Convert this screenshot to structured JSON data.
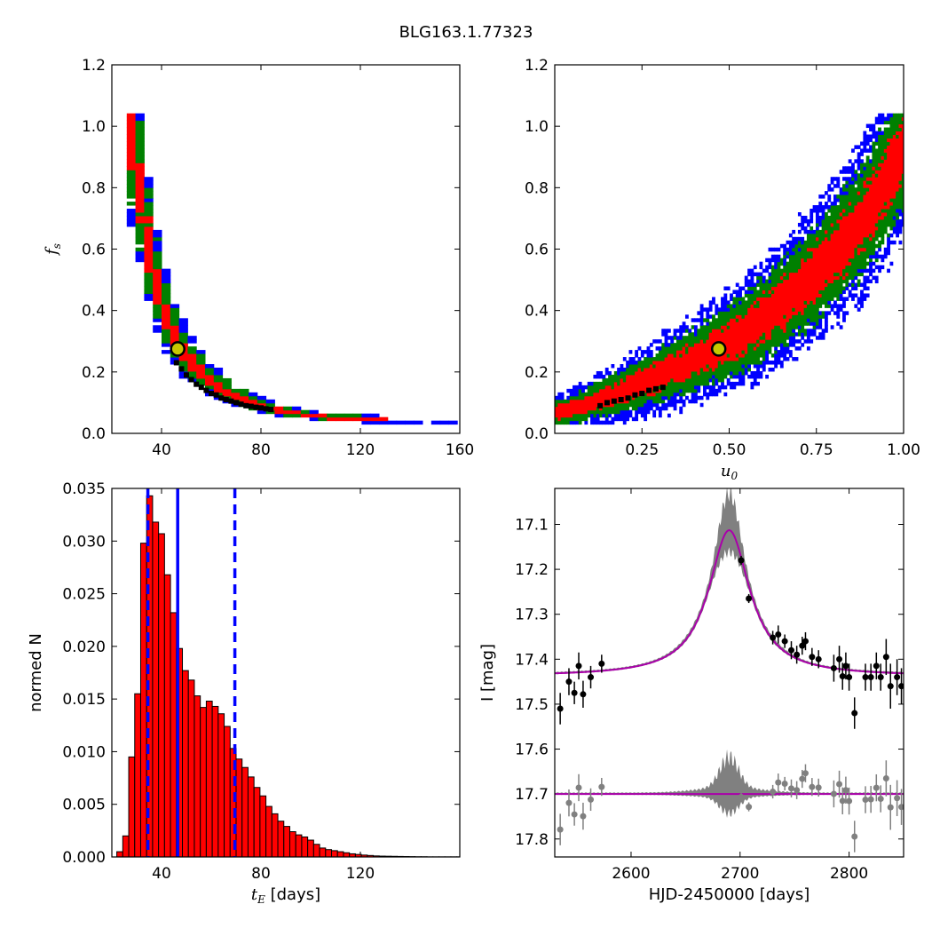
{
  "figure": {
    "title": "BLG163.1.77323"
  },
  "colors": {
    "sigma1": "#ff0000",
    "sigma2": "#008000",
    "sigma3": "#0000ff",
    "best": "#000000",
    "marker_fill": "#c8c800",
    "hist_fill": "#ff0000",
    "model": "#aa00aa",
    "band": "#808080",
    "data_main": "#000000",
    "data_resid": "#808080",
    "median_line": "#0000ff"
  },
  "chart_data": [
    {
      "id": "tE-vs-fs",
      "type": "heatmap",
      "xlabel": "",
      "ylabel": "f_s",
      "xlim": [
        20,
        160
      ],
      "ylim": [
        0.0,
        1.2
      ],
      "xticks": [
        "40",
        "80",
        "120",
        "160"
      ],
      "yticks": [
        "0.0",
        "0.2",
        "0.4",
        "0.6",
        "0.8",
        "1.0",
        "1.2"
      ],
      "marker": {
        "x": 46.5,
        "y": 0.275
      },
      "ridge": [
        [
          26,
          1.03
        ],
        [
          28,
          0.96
        ],
        [
          30,
          0.86
        ],
        [
          32,
          0.74
        ],
        [
          34,
          0.63
        ],
        [
          36,
          0.55
        ],
        [
          38,
          0.48
        ],
        [
          40,
          0.42
        ],
        [
          42,
          0.37
        ],
        [
          44,
          0.33
        ],
        [
          46,
          0.295
        ],
        [
          48,
          0.265
        ],
        [
          50,
          0.24
        ],
        [
          54,
          0.205
        ],
        [
          58,
          0.175
        ],
        [
          62,
          0.15
        ],
        [
          66,
          0.13
        ],
        [
          70,
          0.115
        ],
        [
          75,
          0.098
        ],
        [
          80,
          0.084
        ],
        [
          86,
          0.071
        ],
        [
          92,
          0.061
        ],
        [
          100,
          0.052
        ],
        [
          110,
          0.045
        ],
        [
          120,
          0.041
        ],
        [
          130,
          0.038
        ],
        [
          145,
          0.036
        ],
        [
          158,
          0.035
        ]
      ],
      "best_fit_points": [
        [
          46,
          0.23
        ],
        [
          48,
          0.21
        ],
        [
          50,
          0.19
        ],
        [
          52,
          0.175
        ],
        [
          54,
          0.16
        ],
        [
          56,
          0.15
        ],
        [
          58,
          0.14
        ],
        [
          60,
          0.13
        ],
        [
          62,
          0.125
        ],
        [
          64,
          0.115
        ],
        [
          66,
          0.11
        ],
        [
          68,
          0.105
        ],
        [
          70,
          0.1
        ],
        [
          72,
          0.095
        ],
        [
          74,
          0.09
        ],
        [
          76,
          0.088
        ],
        [
          78,
          0.085
        ],
        [
          80,
          0.083
        ],
        [
          82,
          0.08
        ],
        [
          84,
          0.078
        ]
      ]
    },
    {
      "id": "u0-vs-fs",
      "type": "heatmap",
      "xlabel": "u_0",
      "ylabel": "",
      "xlim": [
        0.0,
        1.0
      ],
      "ylim": [
        0.0,
        1.2
      ],
      "xticks": [
        "0.25",
        "0.50",
        "0.75",
        "1.00"
      ],
      "yticks": [
        "0.0",
        "0.2",
        "0.4",
        "0.6",
        "0.8",
        "1.0",
        "1.2"
      ],
      "marker": {
        "x": 0.47,
        "y": 0.275
      },
      "ridge": [
        [
          0.0,
          0.06
        ],
        [
          0.05,
          0.075
        ],
        [
          0.1,
          0.095
        ],
        [
          0.15,
          0.115
        ],
        [
          0.2,
          0.135
        ],
        [
          0.25,
          0.16
        ],
        [
          0.3,
          0.185
        ],
        [
          0.35,
          0.21
        ],
        [
          0.4,
          0.235
        ],
        [
          0.45,
          0.265
        ],
        [
          0.5,
          0.295
        ],
        [
          0.55,
          0.33
        ],
        [
          0.6,
          0.37
        ],
        [
          0.65,
          0.415
        ],
        [
          0.7,
          0.465
        ],
        [
          0.75,
          0.52
        ],
        [
          0.8,
          0.58
        ],
        [
          0.85,
          0.64
        ],
        [
          0.9,
          0.72
        ],
        [
          0.95,
          0.82
        ],
        [
          1.0,
          0.92
        ]
      ],
      "best_fit_points": [
        [
          0.13,
          0.09
        ],
        [
          0.15,
          0.1
        ],
        [
          0.17,
          0.105
        ],
        [
          0.19,
          0.11
        ],
        [
          0.21,
          0.115
        ],
        [
          0.23,
          0.125
        ],
        [
          0.25,
          0.13
        ],
        [
          0.27,
          0.14
        ],
        [
          0.29,
          0.145
        ],
        [
          0.31,
          0.15
        ]
      ]
    },
    {
      "id": "tE-histogram",
      "type": "bar",
      "xlabel": "t_E [days]",
      "ylabel": "normed N",
      "xlim": [
        20,
        160
      ],
      "ylim": [
        0.0,
        0.035
      ],
      "xticks": [
        "40",
        "80",
        "120"
      ],
      "yticks": [
        "0.000",
        "0.005",
        "0.010",
        "0.015",
        "0.020",
        "0.025",
        "0.030",
        "0.035"
      ],
      "bin_start": 22,
      "bin_width": 2.4,
      "values": [
        0.0005,
        0.002,
        0.0095,
        0.0155,
        0.0298,
        0.0343,
        0.0318,
        0.0307,
        0.0268,
        0.0232,
        0.0198,
        0.0177,
        0.0168,
        0.0153,
        0.0142,
        0.0148,
        0.0143,
        0.0136,
        0.0124,
        0.0103,
        0.0093,
        0.0085,
        0.0076,
        0.0066,
        0.0058,
        0.0048,
        0.0041,
        0.0034,
        0.0029,
        0.0024,
        0.0021,
        0.0019,
        0.0016,
        0.0012,
        0.00085,
        0.0007,
        0.0006,
        0.0005,
        0.0004,
        0.0003,
        0.00024,
        0.00018,
        0.00014,
        0.0001,
        8e-05,
        7e-05,
        6e-05,
        5e-05,
        4e-05,
        3e-05,
        2e-05,
        2e-05,
        1e-05,
        1e-05,
        1e-05,
        1e-05,
        1e-05,
        1e-05
      ],
      "median": 46.5,
      "lower": 34.5,
      "upper": 69.5
    },
    {
      "id": "lightcurve",
      "type": "scatter",
      "xlabel": "HJD-2450000 [days]",
      "ylabel": "I [mag]",
      "xlim": [
        2530,
        2850
      ],
      "ylim": [
        17.84,
        17.02
      ],
      "xticks": [
        "2600",
        "2700",
        "2800"
      ],
      "yticks": [
        "17.1",
        "17.2",
        "17.3",
        "17.4",
        "17.5",
        "17.6",
        "17.7",
        "17.8"
      ],
      "model": {
        "t0": 2690,
        "baseline": 17.438,
        "peak_amp": 0.325,
        "half_width": 23
      },
      "resid_offset": 17.7,
      "points": [
        {
          "t": 2535,
          "m": 17.51,
          "e": 0.035
        },
        {
          "t": 2543,
          "m": 17.45,
          "e": 0.03
        },
        {
          "t": 2548,
          "m": 17.475,
          "e": 0.025
        },
        {
          "t": 2552,
          "m": 17.415,
          "e": 0.03
        },
        {
          "t": 2556,
          "m": 17.478,
          "e": 0.03
        },
        {
          "t": 2563,
          "m": 17.44,
          "e": 0.025
        },
        {
          "t": 2573,
          "m": 17.41,
          "e": 0.02
        },
        {
          "t": 2701,
          "m": 17.18,
          "e": 0.01
        },
        {
          "t": 2708,
          "m": 17.265,
          "e": 0.01
        },
        {
          "t": 2730,
          "m": 17.352,
          "e": 0.015
        },
        {
          "t": 2735,
          "m": 17.345,
          "e": 0.02
        },
        {
          "t": 2741,
          "m": 17.36,
          "e": 0.015
        },
        {
          "t": 2747,
          "m": 17.38,
          "e": 0.02
        },
        {
          "t": 2752,
          "m": 17.39,
          "e": 0.02
        },
        {
          "t": 2757,
          "m": 17.37,
          "e": 0.02
        },
        {
          "t": 2760,
          "m": 17.36,
          "e": 0.02
        },
        {
          "t": 2766,
          "m": 17.395,
          "e": 0.02
        },
        {
          "t": 2772,
          "m": 17.4,
          "e": 0.02
        },
        {
          "t": 2786,
          "m": 17.42,
          "e": 0.03
        },
        {
          "t": 2791,
          "m": 17.4,
          "e": 0.03
        },
        {
          "t": 2794,
          "m": 17.438,
          "e": 0.03
        },
        {
          "t": 2797,
          "m": 17.415,
          "e": 0.03
        },
        {
          "t": 2800,
          "m": 17.44,
          "e": 0.03
        },
        {
          "t": 2805,
          "m": 17.52,
          "e": 0.035
        },
        {
          "t": 2815,
          "m": 17.44,
          "e": 0.03
        },
        {
          "t": 2820,
          "m": 17.44,
          "e": 0.03
        },
        {
          "t": 2825,
          "m": 17.415,
          "e": 0.03
        },
        {
          "t": 2829,
          "m": 17.44,
          "e": 0.03
        },
        {
          "t": 2834,
          "m": 17.395,
          "e": 0.04
        },
        {
          "t": 2838,
          "m": 17.46,
          "e": 0.05
        },
        {
          "t": 2844,
          "m": 17.44,
          "e": 0.04
        },
        {
          "t": 2848,
          "m": 17.46,
          "e": 0.04
        }
      ]
    }
  ]
}
